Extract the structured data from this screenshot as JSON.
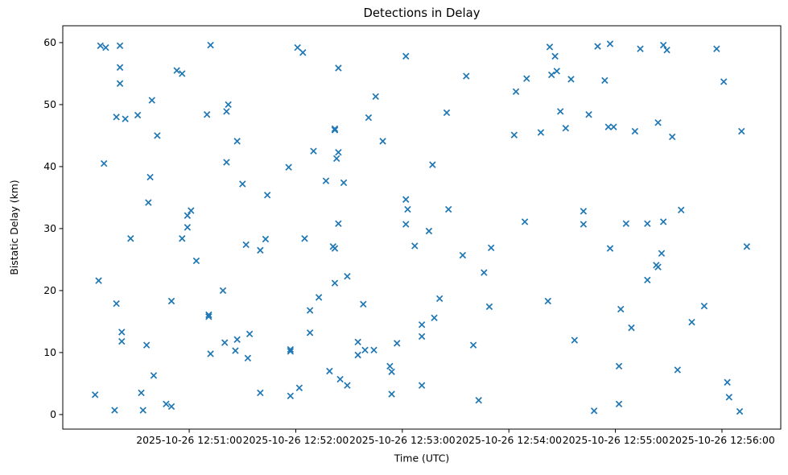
{
  "chart_data": {
    "type": "scatter",
    "title": "Detections in Delay",
    "xlabel": "Time (UTC)",
    "ylabel": "Bistatic Delay (km)",
    "grid": false,
    "legend": null,
    "marker": "x",
    "marker_color": "#1f77b4",
    "spine_color": "#000000",
    "background_color": "#ffffff",
    "x_unit": "seconds since 2025-10-26 12:51:00 UTC",
    "xlim": [
      -71.2,
      333.1
    ],
    "ylim": [
      -2.35,
      62.72
    ],
    "x_ticks": [
      {
        "value": 0,
        "label": "2025-10-26 12:51:00"
      },
      {
        "value": 60,
        "label": "2025-10-26 12:52:00"
      },
      {
        "value": 120,
        "label": "2025-10-26 12:53:00"
      },
      {
        "value": 180,
        "label": "2025-10-26 12:54:00"
      },
      {
        "value": 240,
        "label": "2025-10-26 12:55:00"
      },
      {
        "value": 300,
        "label": "2025-10-26 12:56:00"
      }
    ],
    "y_ticks": [
      {
        "value": 0,
        "label": "0"
      },
      {
        "value": 10,
        "label": "10"
      },
      {
        "value": 20,
        "label": "20"
      },
      {
        "value": 30,
        "label": "30"
      },
      {
        "value": 40,
        "label": "40"
      },
      {
        "value": 50,
        "label": "50"
      },
      {
        "value": 60,
        "label": "60"
      }
    ],
    "points": [
      [
        -50,
        59.5
      ],
      [
        -47,
        59.2
      ],
      [
        -39,
        59.5
      ],
      [
        12,
        59.6
      ],
      [
        -39,
        56.0
      ],
      [
        -7,
        55.5
      ],
      [
        -4,
        55.0
      ],
      [
        -39,
        53.4
      ],
      [
        -21,
        50.7
      ],
      [
        -41,
        48.0
      ],
      [
        -36,
        47.7
      ],
      [
        -29,
        48.3
      ],
      [
        10,
        48.4
      ],
      [
        22,
        50.0
      ],
      [
        21,
        48.9
      ],
      [
        -18,
        45.0
      ],
      [
        27,
        44.1
      ],
      [
        -48,
        40.5
      ],
      [
        21,
        40.7
      ],
      [
        -22,
        38.3
      ],
      [
        30,
        37.2
      ],
      [
        -23,
        34.2
      ],
      [
        1,
        32.9
      ],
      [
        -1,
        32.1
      ],
      [
        -1,
        30.2
      ],
      [
        61,
        59.2
      ],
      [
        64,
        58.4
      ],
      [
        122,
        57.8
      ],
      [
        84,
        55.9
      ],
      [
        105,
        51.3
      ],
      [
        101,
        47.9
      ],
      [
        82,
        46.1
      ],
      [
        82,
        45.9
      ],
      [
        109,
        44.1
      ],
      [
        70,
        42.5
      ],
      [
        84,
        42.3
      ],
      [
        83,
        41.3
      ],
      [
        56,
        39.9
      ],
      [
        77,
        37.7
      ],
      [
        87,
        37.4
      ],
      [
        44,
        35.4
      ],
      [
        122,
        34.7
      ],
      [
        123,
        33.1
      ],
      [
        84,
        30.8
      ],
      [
        122,
        30.7
      ],
      [
        203,
        59.3
      ],
      [
        206,
        57.8
      ],
      [
        230,
        59.4
      ],
      [
        156,
        54.6
      ],
      [
        190,
        54.2
      ],
      [
        207,
        55.4
      ],
      [
        204,
        54.8
      ],
      [
        215,
        54.1
      ],
      [
        184,
        52.1
      ],
      [
        145,
        48.7
      ],
      [
        209,
        48.9
      ],
      [
        225,
        48.4
      ],
      [
        212,
        46.2
      ],
      [
        198,
        45.5
      ],
      [
        183,
        45.1
      ],
      [
        137,
        40.3
      ],
      [
        146,
        33.1
      ],
      [
        189,
        31.1
      ],
      [
        222,
        32.8
      ],
      [
        222,
        30.7
      ],
      [
        237,
        59.8
      ],
      [
        254,
        59.0
      ],
      [
        267,
        59.6
      ],
      [
        269,
        58.8
      ],
      [
        297,
        59.0
      ],
      [
        234,
        53.9
      ],
      [
        301,
        53.7
      ],
      [
        236,
        46.4
      ],
      [
        239,
        46.4
      ],
      [
        251,
        45.7
      ],
      [
        264,
        47.1
      ],
      [
        272,
        44.8
      ],
      [
        311,
        45.7
      ],
      [
        277,
        33.0
      ],
      [
        246,
        30.8
      ],
      [
        258,
        30.8
      ],
      [
        267,
        31.1
      ],
      [
        -33,
        28.4
      ],
      [
        -4,
        28.4
      ],
      [
        4,
        24.8
      ],
      [
        -51,
        21.6
      ],
      [
        19,
        20.0
      ],
      [
        -41,
        17.9
      ],
      [
        -10,
        18.3
      ],
      [
        11,
        16.1
      ],
      [
        11,
        15.8
      ],
      [
        20,
        11.6
      ],
      [
        -38,
        13.3
      ],
      [
        -38,
        11.8
      ],
      [
        -24,
        11.2
      ],
      [
        12,
        9.8
      ],
      [
        26,
        10.3
      ],
      [
        -20,
        6.3
      ],
      [
        -53,
        3.2
      ],
      [
        -42,
        0.7
      ],
      [
        -27,
        3.5
      ],
      [
        -26,
        0.7
      ],
      [
        -13,
        1.7
      ],
      [
        -10,
        1.3
      ],
      [
        27,
        12.1
      ],
      [
        32,
        27.4
      ],
      [
        43,
        28.3
      ],
      [
        40,
        26.5
      ],
      [
        65,
        28.4
      ],
      [
        81,
        27.1
      ],
      [
        82,
        26.8
      ],
      [
        127,
        27.2
      ],
      [
        89,
        22.3
      ],
      [
        82,
        21.2
      ],
      [
        73,
        18.9
      ],
      [
        98,
        17.8
      ],
      [
        68,
        16.8
      ],
      [
        68,
        13.2
      ],
      [
        34,
        13.0
      ],
      [
        33,
        9.1
      ],
      [
        57,
        10.5
      ],
      [
        57,
        10.2
      ],
      [
        95,
        11.7
      ],
      [
        99,
        10.4
      ],
      [
        104,
        10.4
      ],
      [
        95,
        9.6
      ],
      [
        117,
        11.5
      ],
      [
        113,
        7.8
      ],
      [
        114,
        6.9
      ],
      [
        79,
        7.0
      ],
      [
        85,
        5.7
      ],
      [
        89,
        4.7
      ],
      [
        40,
        3.5
      ],
      [
        62,
        4.3
      ],
      [
        57,
        3.0
      ],
      [
        114,
        3.3
      ],
      [
        135,
        29.6
      ],
      [
        170,
        26.9
      ],
      [
        154,
        25.7
      ],
      [
        166,
        22.9
      ],
      [
        141,
        18.7
      ],
      [
        169,
        17.4
      ],
      [
        202,
        18.3
      ],
      [
        138,
        15.6
      ],
      [
        131,
        14.5
      ],
      [
        131,
        12.6
      ],
      [
        160,
        11.2
      ],
      [
        217,
        12.0
      ],
      [
        131,
        4.7
      ],
      [
        163,
        2.3
      ],
      [
        228,
        0.6
      ],
      [
        237,
        26.8
      ],
      [
        266,
        26.0
      ],
      [
        263,
        24.1
      ],
      [
        264,
        23.8
      ],
      [
        258,
        21.7
      ],
      [
        314,
        27.1
      ],
      [
        243,
        17.0
      ],
      [
        290,
        17.5
      ],
      [
        249,
        14.0
      ],
      [
        283,
        14.9
      ],
      [
        242,
        7.8
      ],
      [
        275,
        7.2
      ],
      [
        303,
        5.2
      ],
      [
        242,
        1.7
      ],
      [
        304,
        2.8
      ],
      [
        310,
        0.5
      ]
    ]
  }
}
